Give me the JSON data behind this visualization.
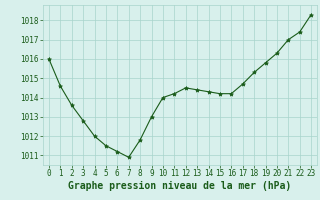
{
  "x": [
    0,
    1,
    2,
    3,
    4,
    5,
    6,
    7,
    8,
    9,
    10,
    11,
    12,
    13,
    14,
    15,
    16,
    17,
    18,
    19,
    20,
    21,
    22,
    23
  ],
  "y": [
    1016.0,
    1014.6,
    1013.6,
    1012.8,
    1012.0,
    1011.5,
    1011.2,
    1010.9,
    1011.8,
    1013.0,
    1014.0,
    1014.2,
    1014.5,
    1014.4,
    1014.3,
    1014.2,
    1014.2,
    1014.7,
    1015.3,
    1015.8,
    1016.3,
    1017.0,
    1017.4,
    1018.3
  ],
  "line_color": "#1a5c1a",
  "marker": "*",
  "marker_size": 3.0,
  "bg_color": "#d8f0ec",
  "grid_color": "#a8d4cc",
  "xlabel": "Graphe pression niveau de la mer (hPa)",
  "xlabel_color": "#1a5c1a",
  "xlabel_fontsize": 7.0,
  "tick_color": "#1a5c1a",
  "tick_fontsize": 5.5,
  "ylim": [
    1010.5,
    1018.8
  ],
  "xlim": [
    -0.5,
    23.5
  ],
  "yticks": [
    1011,
    1012,
    1013,
    1014,
    1015,
    1016,
    1017,
    1018
  ],
  "xticks": [
    0,
    1,
    2,
    3,
    4,
    5,
    6,
    7,
    8,
    9,
    10,
    11,
    12,
    13,
    14,
    15,
    16,
    17,
    18,
    19,
    20,
    21,
    22,
    23
  ]
}
